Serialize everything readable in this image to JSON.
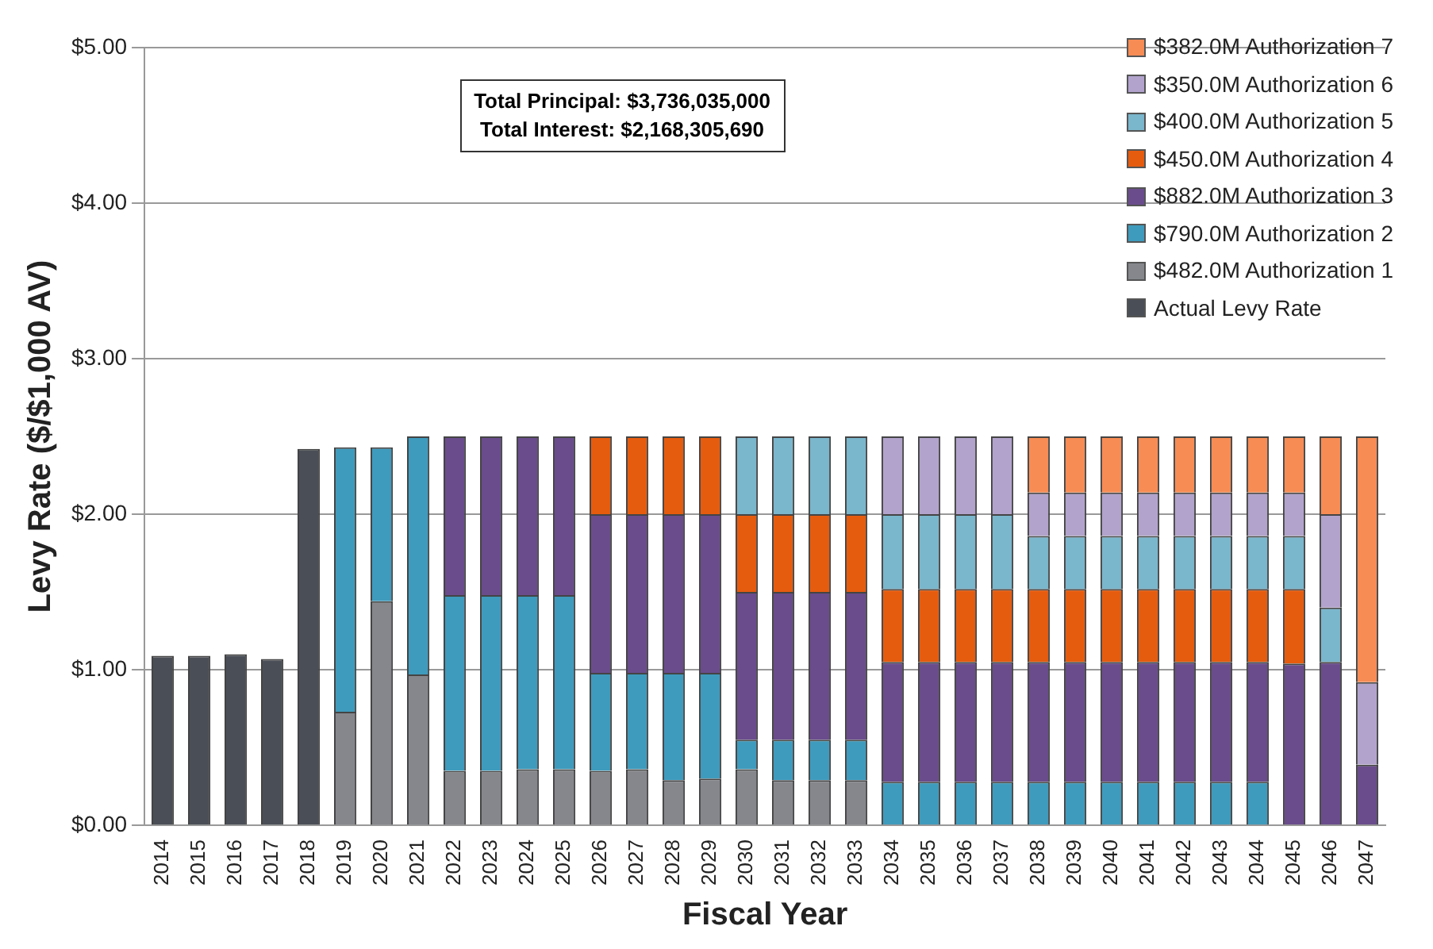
{
  "chart_data": {
    "type": "bar",
    "stacked": true,
    "xlabel": "Fiscal Year",
    "ylabel": "Levy Rate ($/$1,000 AV)",
    "categories": [
      "2014",
      "2015",
      "2016",
      "2017",
      "2018",
      "2019",
      "2020",
      "2021",
      "2022",
      "2023",
      "2024",
      "2025",
      "2026",
      "2027",
      "2028",
      "2029",
      "2030",
      "2031",
      "2032",
      "2033",
      "2034",
      "2035",
      "2036",
      "2037",
      "2038",
      "2039",
      "2040",
      "2041",
      "2042",
      "2043",
      "2044",
      "2045",
      "2046",
      "2047"
    ],
    "series": [
      {
        "name": "Actual Levy Rate",
        "color": "#4a4f57",
        "values": [
          1.09,
          1.09,
          1.1,
          1.07,
          2.42,
          null,
          null,
          null,
          null,
          null,
          null,
          null,
          null,
          null,
          null,
          null,
          null,
          null,
          null,
          null,
          null,
          null,
          null,
          null,
          null,
          null,
          null,
          null,
          null,
          null,
          null,
          null,
          null,
          null
        ]
      },
      {
        "name": "$482.0M Authorization 1",
        "color": "#85878c",
        "values": [
          null,
          null,
          null,
          null,
          null,
          0.73,
          1.44,
          0.97,
          0.35,
          0.35,
          0.36,
          0.36,
          0.35,
          0.36,
          0.29,
          0.3,
          0.36,
          0.29,
          0.29,
          0.29,
          null,
          null,
          null,
          null,
          null,
          null,
          null,
          null,
          null,
          null,
          null,
          null,
          null,
          null
        ]
      },
      {
        "name": "$790.0M Authorization 2",
        "color": "#3f9bbd",
        "values": [
          null,
          null,
          null,
          null,
          null,
          1.7,
          0.99,
          1.53,
          1.13,
          1.13,
          1.12,
          1.12,
          0.63,
          0.62,
          0.69,
          0.68,
          0.19,
          0.26,
          0.26,
          0.26,
          0.28,
          0.28,
          0.28,
          0.28,
          0.28,
          0.28,
          0.28,
          0.28,
          0.28,
          0.28,
          0.28,
          null,
          null,
          null
        ]
      },
      {
        "name": "$882.0M Authorization 3",
        "color": "#6a4c8c",
        "values": [
          null,
          null,
          null,
          null,
          null,
          null,
          null,
          null,
          1.02,
          1.02,
          1.02,
          1.02,
          1.02,
          1.02,
          1.02,
          1.02,
          0.95,
          0.95,
          0.95,
          0.95,
          0.77,
          0.77,
          0.77,
          0.77,
          0.77,
          0.77,
          0.77,
          0.77,
          0.77,
          0.77,
          0.77,
          1.04,
          1.05,
          0.39
        ]
      },
      {
        "name": "$450.0M Authorization 4",
        "color": "#e65c0f",
        "values": [
          null,
          null,
          null,
          null,
          null,
          null,
          null,
          null,
          null,
          null,
          null,
          null,
          0.5,
          0.5,
          0.5,
          0.5,
          0.5,
          0.5,
          0.5,
          0.5,
          0.47,
          0.47,
          0.47,
          0.47,
          0.47,
          0.47,
          0.47,
          0.47,
          0.47,
          0.47,
          0.47,
          0.48,
          null,
          null
        ]
      },
      {
        "name": "$400.0M Authorization 5",
        "color": "#7ab6cc",
        "values": [
          null,
          null,
          null,
          null,
          null,
          null,
          null,
          null,
          null,
          null,
          null,
          null,
          null,
          null,
          null,
          null,
          0.5,
          0.5,
          0.5,
          0.5,
          0.48,
          0.48,
          0.48,
          0.48,
          0.34,
          0.34,
          0.34,
          0.34,
          0.34,
          0.34,
          0.34,
          0.34,
          0.35,
          null
        ]
      },
      {
        "name": "$350.0M Authorization 6",
        "color": "#b2a3cc",
        "values": [
          null,
          null,
          null,
          null,
          null,
          null,
          null,
          null,
          null,
          null,
          null,
          null,
          null,
          null,
          null,
          null,
          null,
          null,
          null,
          null,
          0.5,
          0.5,
          0.5,
          0.5,
          0.28,
          0.28,
          0.28,
          0.28,
          0.28,
          0.28,
          0.28,
          0.28,
          0.6,
          0.53
        ]
      },
      {
        "name": "$382.0M Authorization 7",
        "color": "#f78c55",
        "values": [
          null,
          null,
          null,
          null,
          null,
          null,
          null,
          null,
          null,
          null,
          null,
          null,
          null,
          null,
          null,
          null,
          null,
          null,
          null,
          null,
          null,
          null,
          null,
          null,
          0.36,
          0.36,
          0.36,
          0.36,
          0.36,
          0.36,
          0.36,
          0.36,
          0.5,
          1.58
        ]
      }
    ],
    "ylim": [
      0,
      5
    ],
    "yticks": [
      {
        "value": 0,
        "label": "$0.00"
      },
      {
        "value": 1,
        "label": "$1.00"
      },
      {
        "value": 2,
        "label": "$2.00"
      },
      {
        "value": 3,
        "label": "$3.00"
      },
      {
        "value": 4,
        "label": "$4.00"
      },
      {
        "value": 5,
        "label": "$5.00"
      }
    ],
    "grid": "y",
    "legend": "top right",
    "annotations": [
      "Total Principal: $3,736,035,000",
      "Total Interest: $2,168,305,690"
    ]
  }
}
